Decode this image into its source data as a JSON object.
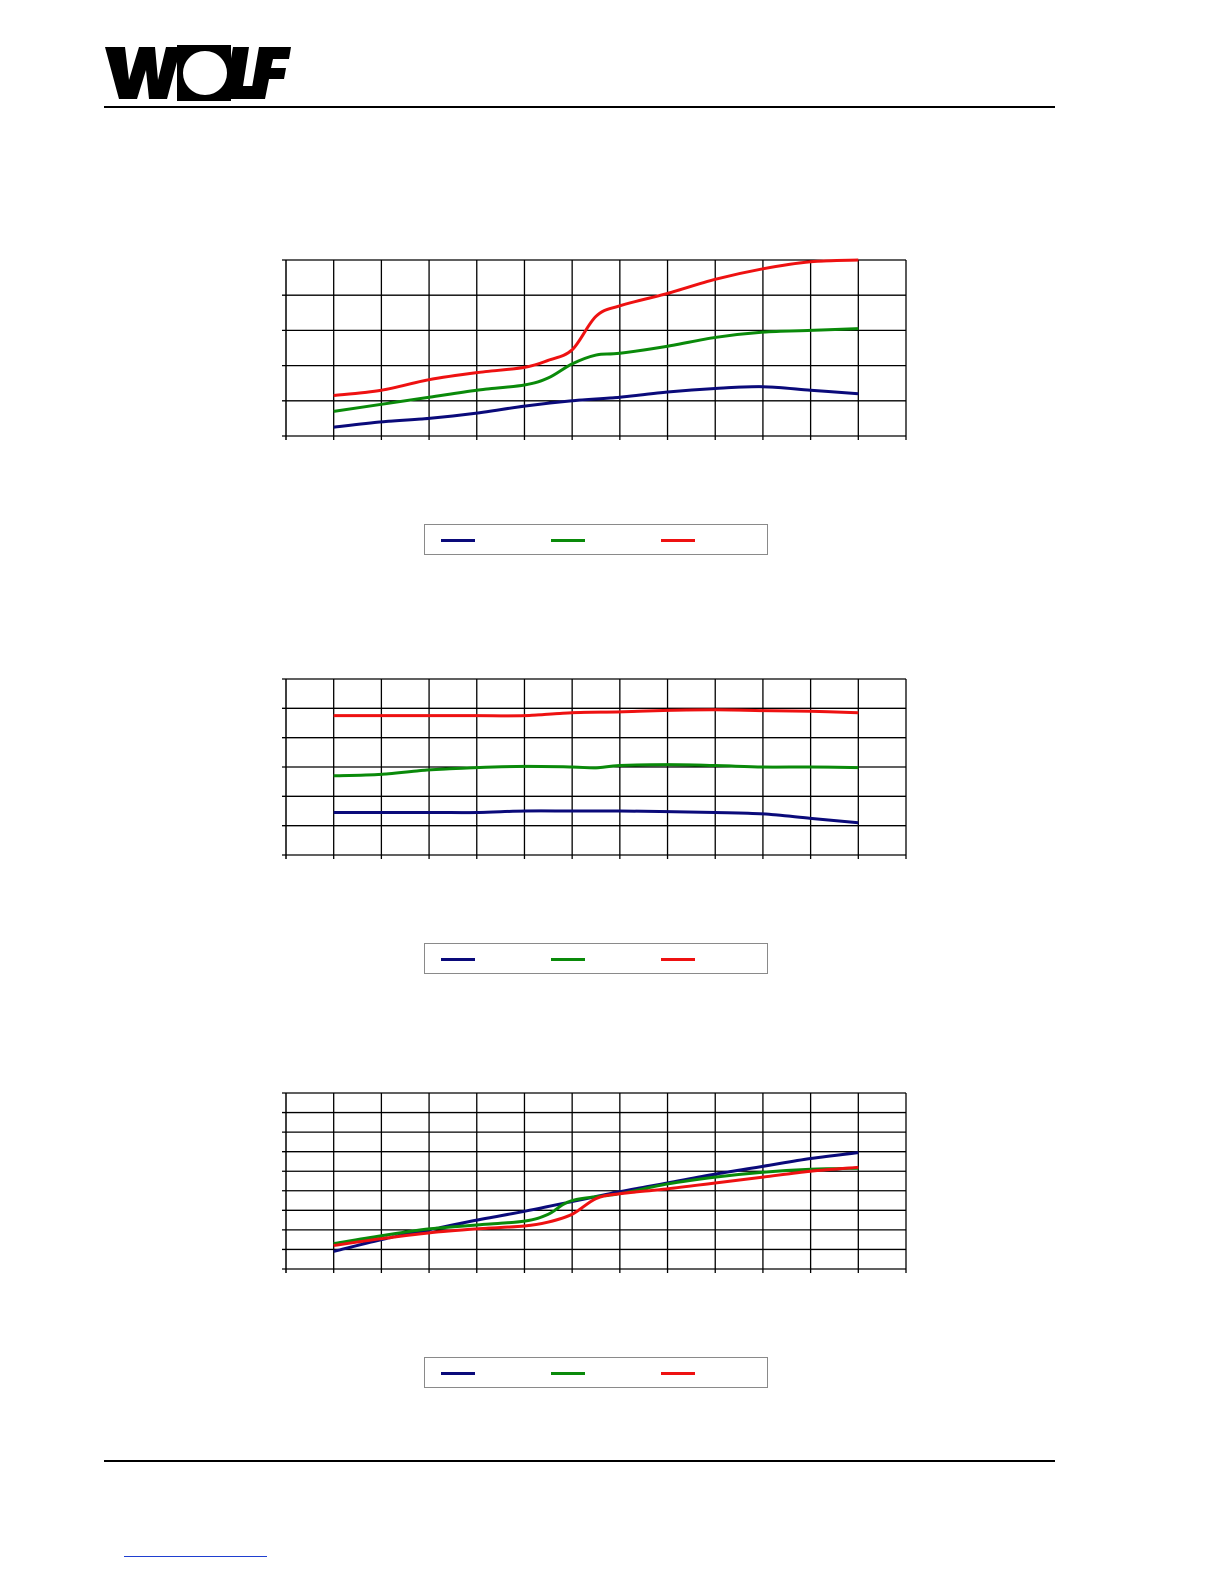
{
  "brand": {
    "logo_text": "WOLF"
  },
  "colors": {
    "series1": "#0a0a7a",
    "series2": "#0a8a0a",
    "series3": "#ee1111",
    "grid": "#000000"
  },
  "chart_data": [
    {
      "type": "line",
      "grid": true,
      "ylim": [
        0,
        5
      ],
      "xlim": [
        0,
        13
      ],
      "series": [
        {
          "points": [
            [
              1,
              0.25
            ],
            [
              2,
              0.4
            ],
            [
              3,
              0.5
            ],
            [
              4,
              0.65
            ],
            [
              5,
              0.85
            ],
            [
              6,
              1.0
            ],
            [
              7,
              1.1
            ],
            [
              8,
              1.25
            ],
            [
              9,
              1.35
            ],
            [
              10,
              1.4
            ],
            [
              11,
              1.3
            ],
            [
              12,
              1.2
            ]
          ]
        },
        {
          "points": [
            [
              1,
              0.7
            ],
            [
              2,
              0.9
            ],
            [
              3,
              1.1
            ],
            [
              4,
              1.3
            ],
            [
              5,
              1.45
            ],
            [
              5.5,
              1.65
            ],
            [
              6,
              2.05
            ],
            [
              6.5,
              2.3
            ],
            [
              7,
              2.35
            ],
            [
              8,
              2.55
            ],
            [
              9,
              2.8
            ],
            [
              10,
              2.95
            ],
            [
              11,
              3.0
            ],
            [
              12,
              3.05
            ]
          ]
        },
        {
          "points": [
            [
              1,
              1.15
            ],
            [
              2,
              1.3
            ],
            [
              3,
              1.6
            ],
            [
              4,
              1.8
            ],
            [
              5,
              1.95
            ],
            [
              5.5,
              2.15
            ],
            [
              6,
              2.45
            ],
            [
              6.5,
              3.4
            ],
            [
              7,
              3.7
            ],
            [
              8,
              4.05
            ],
            [
              9,
              4.45
            ],
            [
              10,
              4.75
            ],
            [
              11,
              4.95
            ],
            [
              12,
              5.0
            ]
          ]
        }
      ]
    },
    {
      "type": "line",
      "grid": true,
      "ylim": [
        0,
        6
      ],
      "xlim": [
        0,
        13
      ],
      "series": [
        {
          "points": [
            [
              1,
              1.45
            ],
            [
              3,
              1.45
            ],
            [
              4,
              1.45
            ],
            [
              5,
              1.5
            ],
            [
              6,
              1.5
            ],
            [
              7,
              1.5
            ],
            [
              8,
              1.48
            ],
            [
              9,
              1.45
            ],
            [
              10,
              1.4
            ],
            [
              11,
              1.25
            ],
            [
              12,
              1.1
            ]
          ]
        },
        {
          "points": [
            [
              1,
              2.7
            ],
            [
              2,
              2.75
            ],
            [
              3,
              2.9
            ],
            [
              4,
              2.98
            ],
            [
              5,
              3.02
            ],
            [
              6,
              3.0
            ],
            [
              6.5,
              2.97
            ],
            [
              7,
              3.05
            ],
            [
              8,
              3.08
            ],
            [
              9,
              3.05
            ],
            [
              10,
              3.0
            ],
            [
              11,
              3.0
            ],
            [
              12,
              2.98
            ]
          ]
        },
        {
          "points": [
            [
              1,
              4.75
            ],
            [
              3,
              4.75
            ],
            [
              4,
              4.75
            ],
            [
              5,
              4.75
            ],
            [
              6,
              4.85
            ],
            [
              7,
              4.88
            ],
            [
              8,
              4.93
            ],
            [
              9,
              4.95
            ],
            [
              10,
              4.92
            ],
            [
              11,
              4.9
            ],
            [
              12,
              4.85
            ]
          ]
        }
      ]
    },
    {
      "type": "line",
      "grid": true,
      "ylim": [
        0,
        9
      ],
      "xlim": [
        0,
        13
      ],
      "series": [
        {
          "points": [
            [
              1,
              0.9
            ],
            [
              2,
              1.5
            ],
            [
              3,
              2.0
            ],
            [
              4,
              2.5
            ],
            [
              5,
              2.95
            ],
            [
              6,
              3.45
            ],
            [
              7,
              3.95
            ],
            [
              8,
              4.4
            ],
            [
              9,
              4.85
            ],
            [
              10,
              5.25
            ],
            [
              11,
              5.65
            ],
            [
              12,
              5.95
            ]
          ]
        },
        {
          "points": [
            [
              1,
              1.3
            ],
            [
              2,
              1.7
            ],
            [
              3,
              2.05
            ],
            [
              4,
              2.25
            ],
            [
              5,
              2.45
            ],
            [
              5.5,
              2.8
            ],
            [
              6,
              3.5
            ],
            [
              7,
              3.85
            ],
            [
              8,
              4.35
            ],
            [
              9,
              4.7
            ],
            [
              10,
              4.95
            ],
            [
              11,
              5.1
            ],
            [
              12,
              5.15
            ]
          ]
        },
        {
          "points": [
            [
              1,
              1.2
            ],
            [
              2,
              1.55
            ],
            [
              3,
              1.85
            ],
            [
              4,
              2.05
            ],
            [
              5,
              2.2
            ],
            [
              5.5,
              2.4
            ],
            [
              6,
              2.8
            ],
            [
              6.5,
              3.6
            ],
            [
              7,
              3.85
            ],
            [
              8,
              4.1
            ],
            [
              9,
              4.4
            ],
            [
              10,
              4.7
            ],
            [
              11,
              5.0
            ],
            [
              12,
              5.2
            ]
          ]
        }
      ]
    }
  ]
}
